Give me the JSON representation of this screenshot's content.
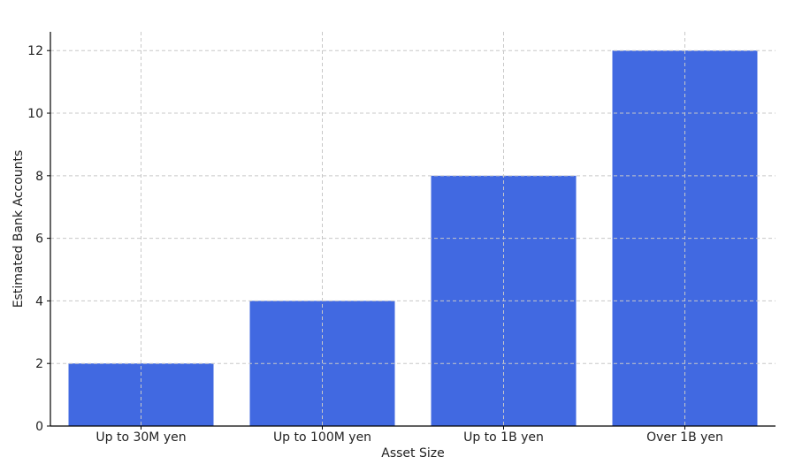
{
  "chart_data": {
    "type": "bar",
    "categories": [
      "Up to 30M yen",
      "Up to 100M yen",
      "Up to 1B yen",
      "Over 1B yen"
    ],
    "values": [
      2,
      4,
      8,
      12
    ],
    "title": "",
    "xlabel": "Asset Size",
    "ylabel": "Estimated Bank Accounts",
    "ylim": [
      0,
      12.6
    ],
    "yticks": [
      0,
      2,
      4,
      6,
      8,
      10,
      12
    ],
    "grid": true,
    "bar_color": "#4169E1"
  }
}
